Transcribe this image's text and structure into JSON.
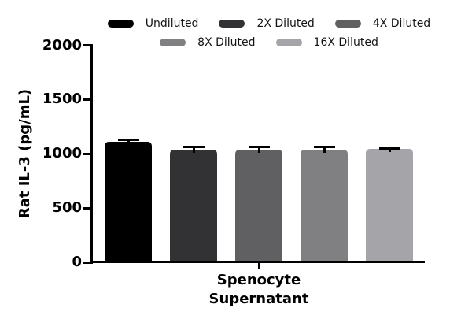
{
  "chart_data": {
    "type": "bar",
    "title": "",
    "ylabel": "Rat IL-3 (pg/mL)",
    "xlabel": "Spenocyte Supernatant",
    "xlabel_lines": [
      "Spenocyte",
      "Supernatant"
    ],
    "categories": [
      "Spenocyte Supernatant"
    ],
    "series": [
      {
        "name": "Undiluted",
        "value": 1110,
        "error": 20,
        "color": "#000000"
      },
      {
        "name": "2X Diluted",
        "value": 1040,
        "error": 27,
        "color": "#323234"
      },
      {
        "name": "4X Diluted",
        "value": 1035,
        "error": 25,
        "color": "#606062"
      },
      {
        "name": "8X Diluted",
        "value": 1040,
        "error": 25,
        "color": "#808082"
      },
      {
        "name": "16X Diluted",
        "value": 1045,
        "error": 6,
        "color": "#a4a4a9"
      }
    ],
    "ylim": [
      0,
      2000
    ],
    "yticks": [
      0,
      500,
      1000,
      1500,
      2000
    ],
    "grid": false,
    "legend_position": "top",
    "error_bar_color": "#000000",
    "axis_color": "#000000",
    "background_color": "#ffffff"
  }
}
